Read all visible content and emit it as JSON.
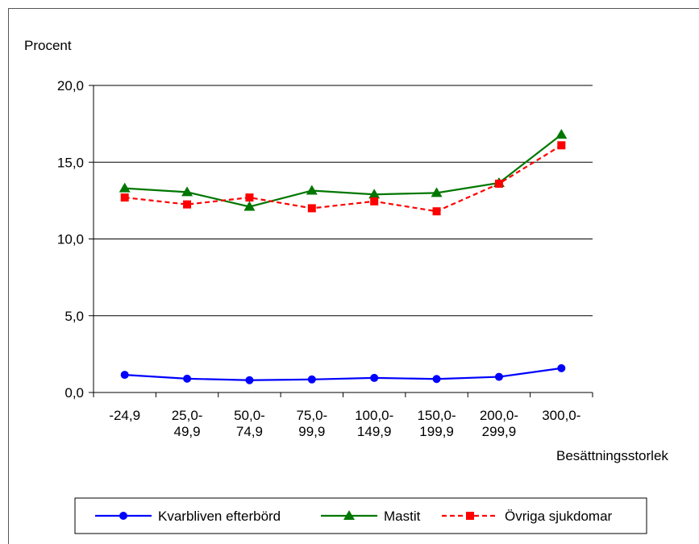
{
  "chart_data": {
    "type": "line",
    "title": "",
    "ylabel": "Procent",
    "xlabel": "Besättningsstorlek",
    "ylim": [
      0,
      20
    ],
    "yticks": [
      "0,0",
      "5,0",
      "10,0",
      "15,0",
      "20,0"
    ],
    "categories": [
      [
        "-24,9"
      ],
      [
        "25,0-",
        "49,9"
      ],
      [
        "50,0-",
        "74,9"
      ],
      [
        "75,0-",
        "99,9"
      ],
      [
        "100,0-",
        "149,9"
      ],
      [
        "150,0-",
        "199,9"
      ],
      [
        "200,0-",
        "299,9"
      ],
      [
        "300,0-"
      ]
    ],
    "grid": true,
    "legend_position": "bottom",
    "series": [
      {
        "name": "Kvarbliven efterbörd",
        "color": "#0000ff",
        "marker": "circle",
        "dash": "solid",
        "values": [
          1.15,
          0.9,
          0.8,
          0.85,
          0.95,
          0.88,
          1.02,
          1.58
        ]
      },
      {
        "name": "Mastit",
        "color": "#007700",
        "marker": "triangle",
        "dash": "solid",
        "values": [
          13.3,
          13.05,
          12.1,
          13.15,
          12.9,
          13.0,
          13.65,
          16.8
        ]
      },
      {
        "name": "Övriga sjukdomar",
        "color": "#ff0000",
        "marker": "square",
        "dash": "dashed",
        "values": [
          12.7,
          12.25,
          12.7,
          12.0,
          12.45,
          11.8,
          13.6,
          16.1
        ]
      }
    ]
  }
}
